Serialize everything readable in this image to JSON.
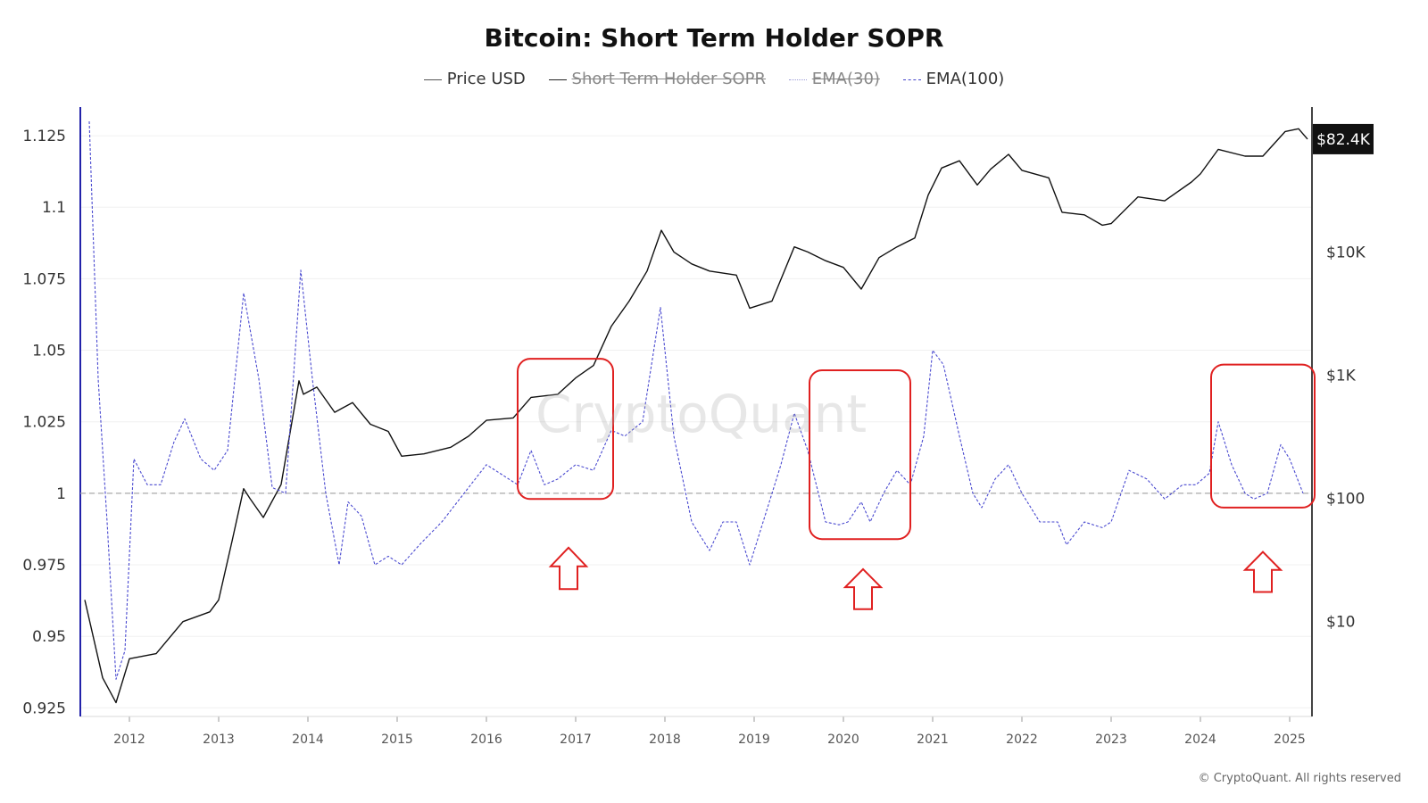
{
  "title": "Bitcoin: Short Term Holder SOPR",
  "legend": [
    {
      "label": "Price USD",
      "color": "#555555",
      "style": "solid",
      "visible": true
    },
    {
      "label": "Short Term Holder SOPR",
      "color": "#222222",
      "style": "solid",
      "visible": false
    },
    {
      "label": "EMA(30)",
      "color": "#9a9ad6",
      "style": "dotted",
      "visible": false
    },
    {
      "label": "EMA(100)",
      "color": "#4444cc",
      "style": "dashed",
      "visible": true
    }
  ],
  "watermark": "CryptoQuant",
  "copyright": "© CryptoQuant. All rights reserved",
  "price_badge": "$82.4K",
  "colors": {
    "price": "#111111",
    "ema100": "#4a4ad0",
    "highlight": "#e02020",
    "baseline": "#aaaaaa",
    "left_axis": "#2222aa",
    "badge_bg": "#111111"
  },
  "chart_data": {
    "type": "line",
    "xlim": [
      2011.45,
      2025.25
    ],
    "x_ticks": [
      "2012",
      "2013",
      "2014",
      "2015",
      "2016",
      "2017",
      "2018",
      "2019",
      "2020",
      "2021",
      "2022",
      "2023",
      "2024",
      "2025"
    ],
    "y_left": {
      "lim": [
        0.922,
        1.135
      ],
      "ticks": [
        "0.925",
        "0.95",
        "0.975",
        "1",
        "1.025",
        "1.05",
        "1.075",
        "1.1",
        "1.125"
      ]
    },
    "y_right": {
      "scale": "log",
      "lim": [
        1.7,
        150000
      ],
      "ticks": [
        "$10",
        "$100",
        "$1K",
        "$10K"
      ]
    },
    "baseline": 1,
    "series": [
      {
        "name": "Price USD",
        "axis": "right",
        "x": [
          2011.5,
          2011.7,
          2011.85,
          2012.0,
          2012.3,
          2012.6,
          2012.9,
          2013.0,
          2013.15,
          2013.28,
          2013.35,
          2013.5,
          2013.7,
          2013.9,
          2013.95,
          2014.1,
          2014.3,
          2014.5,
          2014.7,
          2014.9,
          2015.05,
          2015.3,
          2015.6,
          2015.8,
          2016.0,
          2016.3,
          2016.5,
          2016.8,
          2017.0,
          2017.2,
          2017.4,
          2017.6,
          2017.8,
          2017.96,
          2018.1,
          2018.3,
          2018.5,
          2018.8,
          2018.95,
          2019.2,
          2019.45,
          2019.6,
          2019.8,
          2020.0,
          2020.2,
          2020.4,
          2020.6,
          2020.8,
          2020.95,
          2021.1,
          2021.3,
          2021.5,
          2021.65,
          2021.85,
          2022.0,
          2022.3,
          2022.45,
          2022.7,
          2022.9,
          2023.0,
          2023.3,
          2023.6,
          2023.9,
          2024.0,
          2024.2,
          2024.5,
          2024.7,
          2024.95,
          2025.1,
          2025.2
        ],
        "values": [
          15,
          3.5,
          2.2,
          5,
          5.5,
          10,
          12,
          15,
          45,
          120,
          100,
          70,
          130,
          900,
          700,
          800,
          500,
          600,
          400,
          350,
          220,
          230,
          260,
          320,
          430,
          450,
          660,
          700,
          950,
          1200,
          2500,
          4000,
          7000,
          15000,
          10000,
          8000,
          7000,
          6500,
          3500,
          4000,
          11000,
          10000,
          8500,
          7500,
          5000,
          9000,
          11000,
          13000,
          29000,
          48000,
          55000,
          35000,
          47000,
          62000,
          46000,
          40000,
          21000,
          20000,
          16500,
          17000,
          28000,
          26000,
          37000,
          43000,
          68000,
          60000,
          60000,
          95000,
          100000,
          82400
        ]
      },
      {
        "name": "EMA(100)",
        "axis": "left",
        "x": [
          2011.55,
          2011.65,
          2011.75,
          2011.85,
          2011.95,
          2012.05,
          2012.2,
          2012.35,
          2012.5,
          2012.62,
          2012.8,
          2012.95,
          2013.1,
          2013.28,
          2013.45,
          2013.6,
          2013.75,
          2013.92,
          2014.05,
          2014.2,
          2014.35,
          2014.45,
          2014.6,
          2014.75,
          2014.9,
          2015.05,
          2015.25,
          2015.5,
          2015.75,
          2016.0,
          2016.15,
          2016.35,
          2016.5,
          2016.65,
          2016.8,
          2017.0,
          2017.2,
          2017.4,
          2017.55,
          2017.75,
          2017.95,
          2018.1,
          2018.3,
          2018.5,
          2018.65,
          2018.8,
          2018.95,
          2019.1,
          2019.3,
          2019.45,
          2019.6,
          2019.8,
          2019.95,
          2020.05,
          2020.2,
          2020.3,
          2020.45,
          2020.6,
          2020.75,
          2020.9,
          2021.0,
          2021.12,
          2021.3,
          2021.45,
          2021.55,
          2021.7,
          2021.85,
          2022.0,
          2022.2,
          2022.4,
          2022.5,
          2022.7,
          2022.9,
          2023.0,
          2023.2,
          2023.4,
          2023.6,
          2023.8,
          2023.95,
          2024.1,
          2024.2,
          2024.35,
          2024.5,
          2024.6,
          2024.75,
          2024.9,
          2025.0,
          2025.15
        ],
        "values": [
          1.13,
          1.04,
          0.99,
          0.935,
          0.945,
          1.012,
          1.003,
          1.003,
          1.018,
          1.026,
          1.012,
          1.008,
          1.015,
          1.07,
          1.04,
          1.002,
          1.0,
          1.078,
          1.04,
          1.0,
          0.975,
          0.997,
          0.992,
          0.975,
          0.978,
          0.975,
          0.982,
          0.99,
          1.0,
          1.01,
          1.007,
          1.003,
          1.015,
          1.003,
          1.005,
          1.01,
          1.008,
          1.022,
          1.02,
          1.025,
          1.065,
          1.02,
          0.99,
          0.98,
          0.99,
          0.99,
          0.975,
          0.99,
          1.01,
          1.028,
          1.015,
          0.99,
          0.989,
          0.99,
          0.997,
          0.99,
          1.0,
          1.008,
          1.003,
          1.02,
          1.05,
          1.045,
          1.02,
          1.0,
          0.995,
          1.005,
          1.01,
          1.0,
          0.99,
          0.99,
          0.982,
          0.99,
          0.988,
          0.99,
          1.008,
          1.005,
          0.998,
          1.003,
          1.003,
          1.007,
          1.025,
          1.01,
          1.0,
          0.998,
          1.0,
          1.017,
          1.012,
          1.0
        ]
      }
    ],
    "highlight_boxes": [
      {
        "x0": 2016.35,
        "x1": 2017.42,
        "y0": 0.998,
        "y1": 1.047
      },
      {
        "x0": 2019.62,
        "x1": 2020.75,
        "y0": 0.984,
        "y1": 1.043
      },
      {
        "x0": 2024.12,
        "x1": 2025.28,
        "y0": 0.995,
        "y1": 1.045
      }
    ],
    "arrows": [
      {
        "x": 2016.92,
        "y_tip": 0.981,
        "y_base": 0.9665
      },
      {
        "x": 2020.22,
        "y_tip": 0.9735,
        "y_base": 0.9595
      },
      {
        "x": 2024.7,
        "y_tip": 0.9795,
        "y_base": 0.9655
      }
    ]
  }
}
